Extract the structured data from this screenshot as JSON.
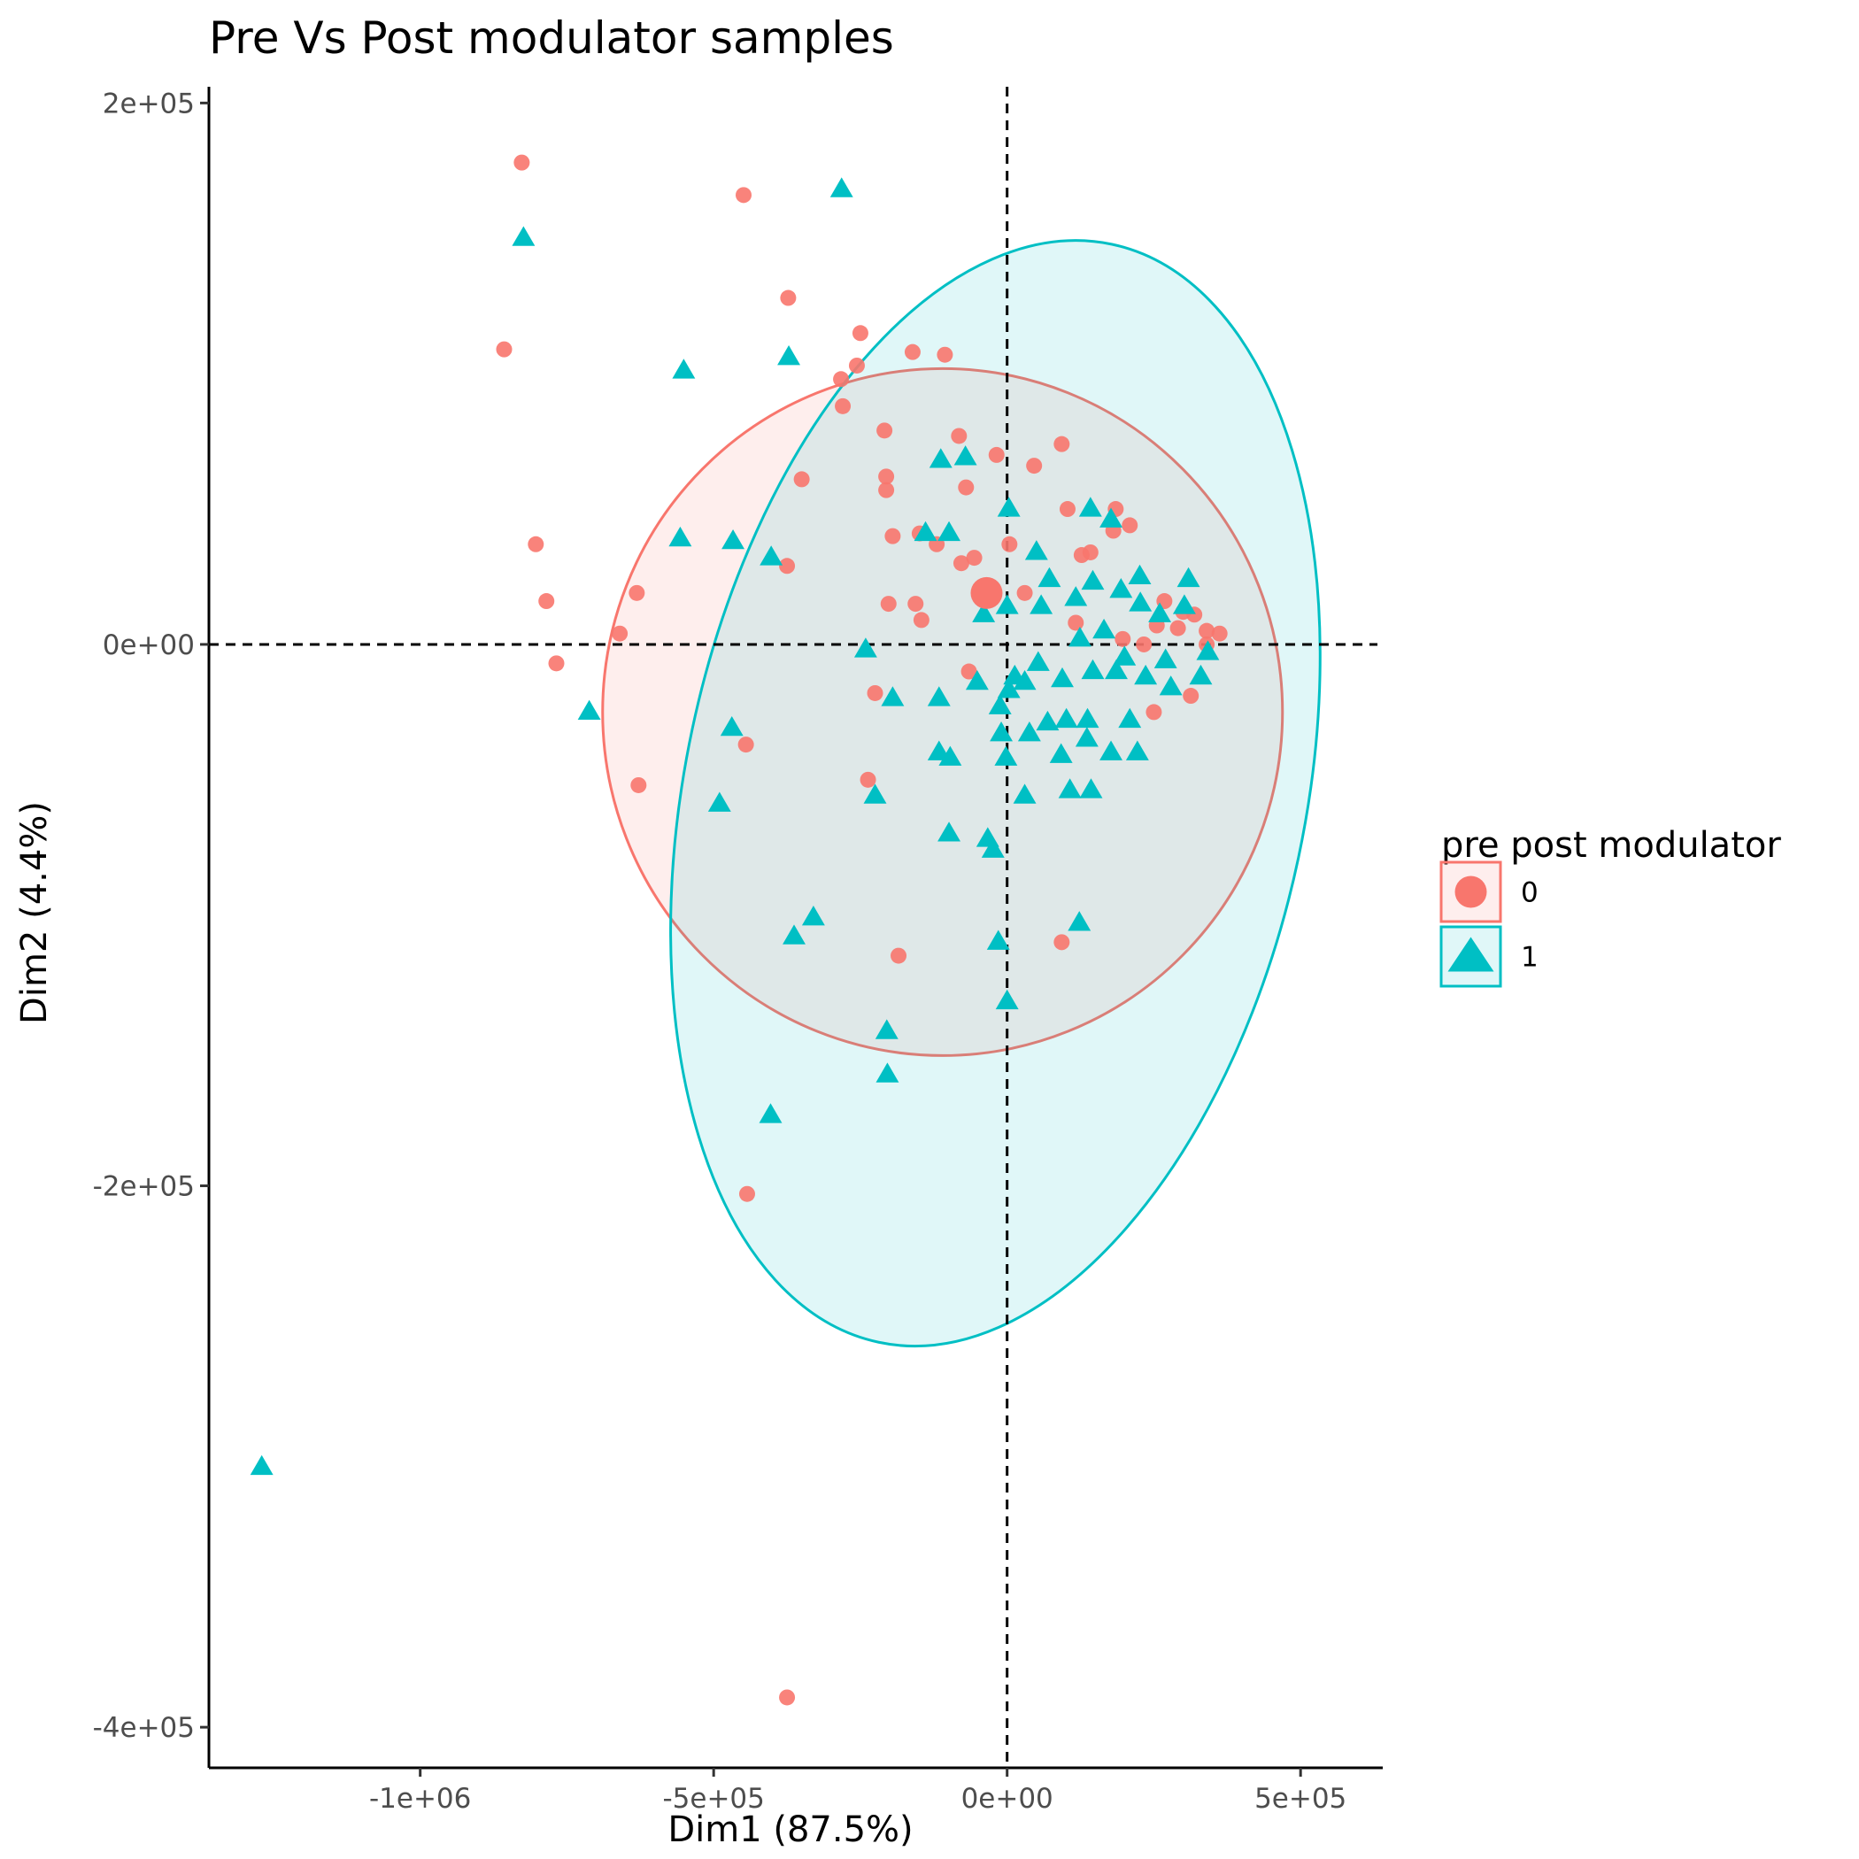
{
  "chart_data": {
    "type": "scatter",
    "title": "Pre Vs Post modulator samples",
    "xlabel": "Dim1 (87.5%)",
    "ylabel": "Dim2 (4.4%)",
    "xlim": [
      -1360000,
      640000
    ],
    "ylim": [
      -415000,
      206000
    ],
    "x_ticks": [
      -1000000,
      -500000,
      0,
      500000
    ],
    "x_tick_labels": [
      "-1e+06",
      "-5e+05",
      "0e+00",
      "5e+05"
    ],
    "y_ticks": [
      200000,
      0,
      -200000,
      -400000
    ],
    "y_tick_labels": [
      "2e+05",
      "0e+00",
      "-2e+05",
      "-4e+05"
    ],
    "grid": false,
    "reference_lines": {
      "x": 0,
      "y": 0,
      "style": "dashed"
    },
    "legend": {
      "title": "pre post modulator",
      "placement": "right",
      "entries": [
        {
          "label": "0",
          "shape": "circle"
        },
        {
          "label": "1",
          "shape": "triangle"
        }
      ]
    },
    "series": [
      {
        "name": "0",
        "shape": "circle",
        "color": "#F8766D",
        "centroid": [
          -35000,
          19000
        ],
        "ellipse": {
          "center": [
            -110000,
            -25000
          ],
          "rx": 1160000,
          "ry": 128000
        },
        "points": [
          [
            -827000,
            178000
          ],
          [
            -449000,
            166000
          ],
          [
            -373000,
            128000
          ],
          [
            -250000,
            115000
          ],
          [
            -256000,
            103000
          ],
          [
            -283000,
            98000
          ],
          [
            -161000,
            108000
          ],
          [
            -106000,
            107000
          ],
          [
            -857000,
            109000
          ],
          [
            -280000,
            88000
          ],
          [
            -209000,
            79000
          ],
          [
            -82000,
            77000
          ],
          [
            -18000,
            70000
          ],
          [
            93000,
            74000
          ],
          [
            46000,
            66000
          ],
          [
            -350000,
            61000
          ],
          [
            -206000,
            62000
          ],
          [
            -206000,
            57000
          ],
          [
            -70000,
            58000
          ],
          [
            103000,
            50000
          ],
          [
            185000,
            50000
          ],
          [
            -803000,
            37000
          ],
          [
            -195000,
            40000
          ],
          [
            -149000,
            41000
          ],
          [
            -120000,
            37000
          ],
          [
            4000,
            37000
          ],
          [
            209000,
            44000
          ],
          [
            181000,
            42000
          ],
          [
            127000,
            33000
          ],
          [
            -375000,
            29000
          ],
          [
            -78000,
            30000
          ],
          [
            -56000,
            32000
          ],
          [
            142000,
            34000
          ],
          [
            -631000,
            19000
          ],
          [
            -785000,
            16000
          ],
          [
            -202000,
            15000
          ],
          [
            -156000,
            15000
          ],
          [
            -146000,
            9000
          ],
          [
            30000,
            19000
          ],
          [
            -660000,
            4000
          ],
          [
            268000,
            16000
          ],
          [
            300000,
            12000
          ],
          [
            319000,
            11000
          ],
          [
            255000,
            7000
          ],
          [
            291000,
            6000
          ],
          [
            362000,
            4000
          ],
          [
            340000,
            5000
          ],
          [
            -768000,
            -7000
          ],
          [
            197000,
            2000
          ],
          [
            233000,
            0
          ],
          [
            340000,
            0
          ],
          [
            117000,
            8000
          ],
          [
            -225000,
            -18000
          ],
          [
            -65000,
            -10000
          ],
          [
            313000,
            -19000
          ],
          [
            250000,
            -25000
          ],
          [
            -445000,
            -37000
          ],
          [
            -628000,
            -52000
          ],
          [
            -237000,
            -50000
          ],
          [
            93000,
            -110000
          ],
          [
            -185000,
            -115000
          ],
          [
            -443000,
            -203000
          ],
          [
            -375000,
            -389000
          ]
        ]
      },
      {
        "name": "1",
        "shape": "triangle",
        "color": "#00BFC4",
        "ellipse": {
          "center": [
            -20000,
            -55000
          ],
          "rx": 1030000,
          "ry": 118000
        },
        "points": [
          [
            -282000,
            168000
          ],
          [
            -824000,
            150000
          ],
          [
            -372000,
            106000
          ],
          [
            -551000,
            101000
          ],
          [
            -113000,
            68000
          ],
          [
            -71000,
            69000
          ],
          [
            -557000,
            39000
          ],
          [
            -467000,
            38000
          ],
          [
            -402000,
            32000
          ],
          [
            3000,
            50000
          ],
          [
            142000,
            50000
          ],
          [
            177000,
            46000
          ],
          [
            -139000,
            41000
          ],
          [
            -99000,
            41000
          ],
          [
            50000,
            34000
          ],
          [
            72000,
            24000
          ],
          [
            117000,
            17000
          ],
          [
            194000,
            20000
          ],
          [
            226000,
            25000
          ],
          [
            309000,
            24000
          ],
          [
            146000,
            23000
          ],
          [
            58000,
            14000
          ],
          [
            -40000,
            11000
          ],
          [
            0,
            14000
          ],
          [
            227000,
            15000
          ],
          [
            260000,
            11000
          ],
          [
            302000,
            14000
          ],
          [
            124000,
            2000
          ],
          [
            165000,
            5000
          ],
          [
            200000,
            -5000
          ],
          [
            270000,
            -6000
          ],
          [
            330000,
            -12000
          ],
          [
            342000,
            -3000
          ],
          [
            -712000,
            -25000
          ],
          [
            -241000,
            -2000
          ],
          [
            -51000,
            -14000
          ],
          [
            13000,
            -12000
          ],
          [
            53000,
            -7000
          ],
          [
            94000,
            -13000
          ],
          [
            146000,
            -10000
          ],
          [
            186000,
            -10000
          ],
          [
            236000,
            -12000
          ],
          [
            279000,
            -16000
          ],
          [
            -116000,
            -20000
          ],
          [
            -195000,
            -20000
          ],
          [
            -12000,
            -23000
          ],
          [
            3000,
            -17000
          ],
          [
            30000,
            -14000
          ],
          [
            69000,
            -29000
          ],
          [
            101000,
            -28000
          ],
          [
            137000,
            -28000
          ],
          [
            209000,
            -28000
          ],
          [
            -469000,
            -31000
          ],
          [
            -10000,
            -33000
          ],
          [
            38000,
            -33000
          ],
          [
            136000,
            -35000
          ],
          [
            92000,
            -41000
          ],
          [
            -116000,
            -40000
          ],
          [
            -97000,
            -42000
          ],
          [
            -2000,
            -42000
          ],
          [
            177000,
            -40000
          ],
          [
            222000,
            -40000
          ],
          [
            -490000,
            -59000
          ],
          [
            -225000,
            -56000
          ],
          [
            30000,
            -56000
          ],
          [
            107000,
            -54000
          ],
          [
            143000,
            -54000
          ],
          [
            -99000,
            -70000
          ],
          [
            -33000,
            -72000
          ],
          [
            -24000,
            -76000
          ],
          [
            -363000,
            -108000
          ],
          [
            -330000,
            -101000
          ],
          [
            -15000,
            -110000
          ],
          [
            123000,
            -103000
          ],
          [
            0,
            -132000
          ],
          [
            -205000,
            -143000
          ],
          [
            -204000,
            -159000
          ],
          [
            -403000,
            -174000
          ],
          [
            -1270000,
            -304000
          ]
        ]
      }
    ]
  }
}
